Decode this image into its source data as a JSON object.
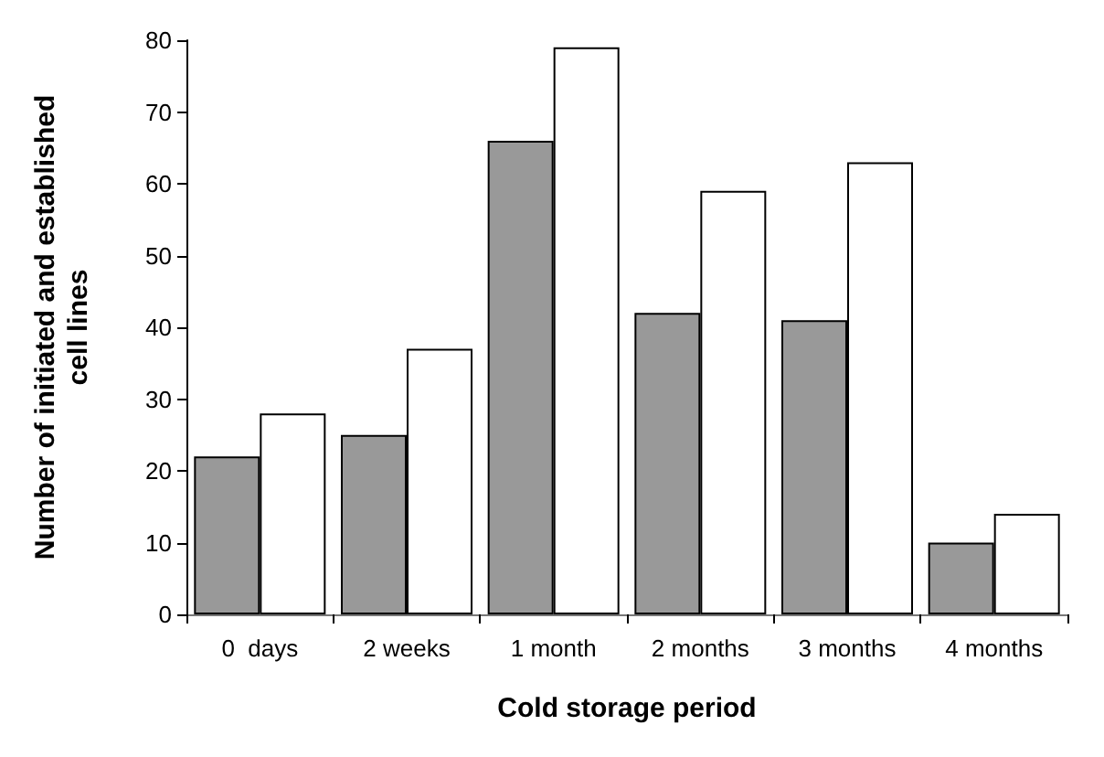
{
  "chart_data": {
    "type": "bar",
    "xlabel": "Cold storage period",
    "ylabel": "Number of initiated and established cell lines",
    "categories": [
      "0  days",
      "2 weeks",
      "1 month",
      "2 months",
      "3 months",
      "4 months"
    ],
    "series": [
      {
        "color": "#999999",
        "values": [
          22,
          25,
          66,
          42,
          41,
          10
        ]
      },
      {
        "color": "#ffffff",
        "values": [
          28,
          37,
          79,
          59,
          63,
          14
        ]
      }
    ],
    "ylim": [
      0,
      80
    ],
    "yticks": [
      0,
      10,
      20,
      30,
      40,
      50,
      60,
      70,
      80
    ],
    "grid": false
  }
}
